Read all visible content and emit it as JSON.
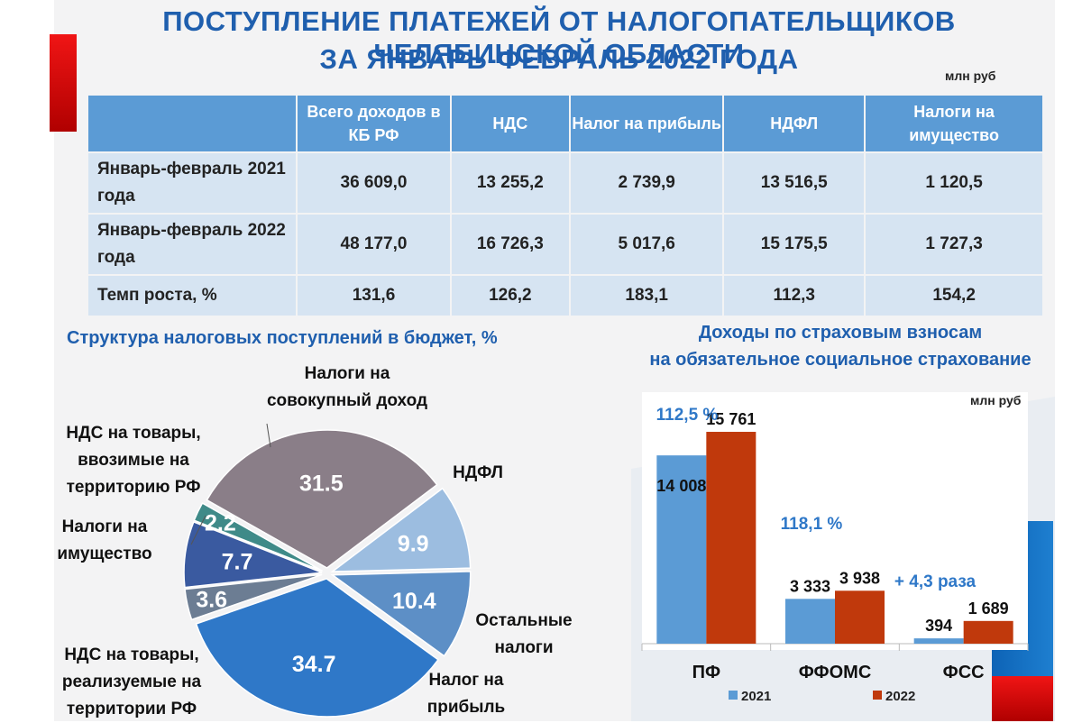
{
  "title_line1": "ПОСТУПЛЕНИЕ ПЛАТЕЖЕЙ ОТ НАЛОГОПАТЕЛЬЩИКОВ ЧЕЛЯБИНСКОЙ ОБЛАСТИ",
  "title_line2": "ЗА ЯНВАРЬ-ФЕВРАЛЬ 2022 ГОДА",
  "unit": "млн руб",
  "table": {
    "headers": [
      "",
      "Всего доходов в КБ РФ",
      "НДС",
      "Налог на прибыль",
      "НДФЛ",
      "Налоги на имущество"
    ],
    "rows": [
      {
        "label": "Январь-февраль 2021 года",
        "values": [
          "36 609,0",
          "13 255,2",
          "2 739,9",
          "13 516,5",
          "1 120,5"
        ]
      },
      {
        "label": "Январь-февраль 2022 года",
        "values": [
          "48 177,0",
          "16 726,3",
          "5 017,6",
          "15 175,5",
          "1 727,3"
        ]
      },
      {
        "label": "Темп роста, %",
        "values": [
          "131,6",
          "126,2",
          "183,1",
          "112,3",
          "154,2"
        ]
      }
    ]
  },
  "pie": {
    "title": "Структура налоговых поступлений в бюджет, %"
  },
  "bars": {
    "title_line1": "Доходы по страховым взносам",
    "title_line2": "на обязательное социальное страхование",
    "unit": "млн руб",
    "colors": {
      "2021": "#5b9bd5",
      "2022": "#c0390c"
    },
    "growth": [
      "112,5 %",
      "118,1 %",
      "+ 4,3 раза"
    ]
  },
  "chart_data": [
    {
      "type": "pie",
      "title": "Структура налоговых поступлений в бюджет, %",
      "slices": [
        {
          "label": "НДФЛ",
          "value": 31.5,
          "display": "31.5",
          "color": "#8a7e88"
        },
        {
          "label": "Остальные налоги",
          "value": 9.9,
          "display": "9.9",
          "color": "#9cbde0"
        },
        {
          "label": "Налог на прибыль",
          "value": 10.4,
          "display": "10.4",
          "color": "#5d8fc6"
        },
        {
          "label": "НДС на товары, реализуемые на территории РФ",
          "value": 34.7,
          "display": "34.7",
          "color": "#2f78c8"
        },
        {
          "label": "Налоги на имущество",
          "value": 3.6,
          "display": "3.6",
          "color": "#6c7d93"
        },
        {
          "label": "НДС на товары, ввозимые на территорию РФ",
          "value": 7.7,
          "display": "7.7",
          "color": "#3a5aa0"
        },
        {
          "label": "Налоги на совокупный доход",
          "value": 2.2,
          "display": "2.2",
          "color": "#3f8a88"
        }
      ]
    },
    {
      "type": "bar",
      "title": "Доходы по страховым взносам на обязательное социальное страхование",
      "ylabel": "млн руб",
      "categories": [
        "ПФ",
        "ФФОМС",
        "ФСС"
      ],
      "series": [
        {
          "name": "2021",
          "values": [
            14008,
            3333,
            394
          ],
          "labels": [
            "14 008",
            "3 333",
            "394"
          ]
        },
        {
          "name": "2022",
          "values": [
            15761,
            3938,
            1689
          ],
          "labels": [
            "15 761",
            "3 938",
            "1 689"
          ]
        }
      ],
      "ylim": [
        0,
        16500
      ]
    }
  ]
}
